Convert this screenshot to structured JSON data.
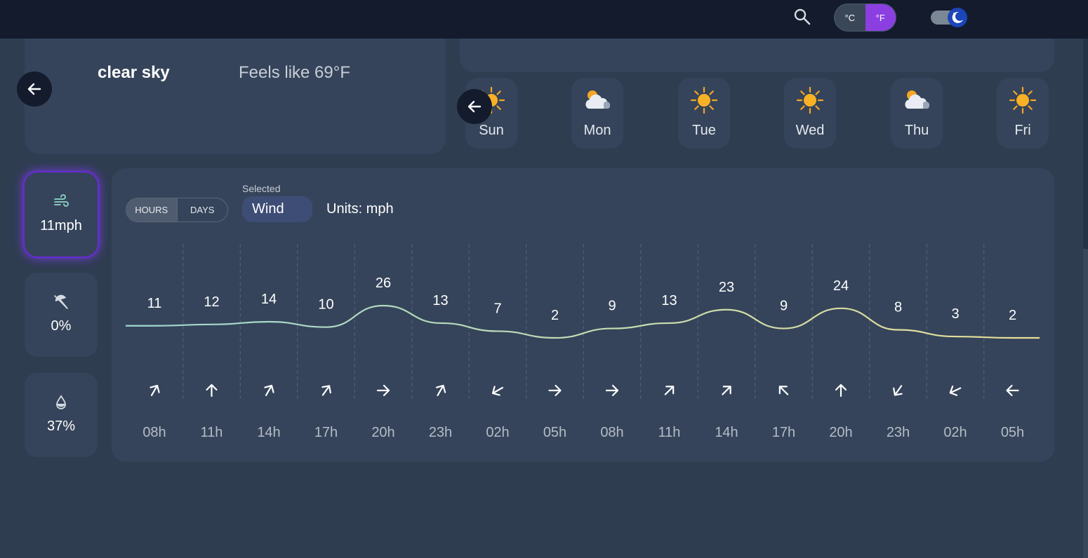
{
  "header": {
    "search_icon": "search-icon",
    "unit_celsius": "°C",
    "unit_fahrenheit": "°F",
    "active_unit": "fahrenheit",
    "theme": "dark",
    "theme_icon": "moon-icon"
  },
  "current": {
    "condition": "clear sky",
    "feels_like": "Feels like 69°F"
  },
  "forecast_days": [
    {
      "label": "Sun",
      "icon": "sun-icon"
    },
    {
      "label": "Mon",
      "icon": "partly-cloudy-icon"
    },
    {
      "label": "Tue",
      "icon": "sun-icon"
    },
    {
      "label": "Wed",
      "icon": "sun-icon"
    },
    {
      "label": "Thu",
      "icon": "partly-cloudy-icon"
    },
    {
      "label": "Fri",
      "icon": "sun-icon"
    }
  ],
  "metrics": [
    {
      "icon": "wind-icon",
      "value": "11mph",
      "selected": true
    },
    {
      "icon": "umbrella-icon",
      "value": "0%",
      "selected": false
    },
    {
      "icon": "droplet-icon",
      "value": "37%",
      "selected": false
    }
  ],
  "chart_panel": {
    "hours_label": "HOURS",
    "days_label": "DAYS",
    "selected_caption": "Selected",
    "selected_value": "Wind",
    "units": "Units: mph"
  },
  "chart_data": {
    "type": "line",
    "x": [
      "08h",
      "11h",
      "14h",
      "17h",
      "20h",
      "23h",
      "02h",
      "05h",
      "08h",
      "11h",
      "14h",
      "17h",
      "20h",
      "23h",
      "02h",
      "05h"
    ],
    "values": [
      11,
      12,
      14,
      10,
      26,
      13,
      7,
      2,
      9,
      13,
      23,
      9,
      24,
      8,
      3,
      2
    ],
    "wind_direction_icons": [
      "arrow-ne-icon",
      "arrow-n-icon",
      "arrow-ne-icon",
      "arrow-ne-icon",
      "arrow-e-icon",
      "arrow-ne-icon",
      "arrow-sw-icon",
      "arrow-e-icon",
      "arrow-e-icon",
      "arrow-ne-icon",
      "arrow-ne-icon",
      "arrow-nw-icon",
      "arrow-n-icon",
      "arrow-sw-icon",
      "arrow-sw-icon",
      "arrow-w-icon"
    ],
    "wind_direction_deg": [
      30,
      0,
      30,
      35,
      90,
      30,
      240,
      90,
      90,
      45,
      45,
      315,
      0,
      215,
      245,
      270
    ],
    "grid": true,
    "line_colors": [
      "#9ed8d2",
      "#e8df95"
    ]
  }
}
